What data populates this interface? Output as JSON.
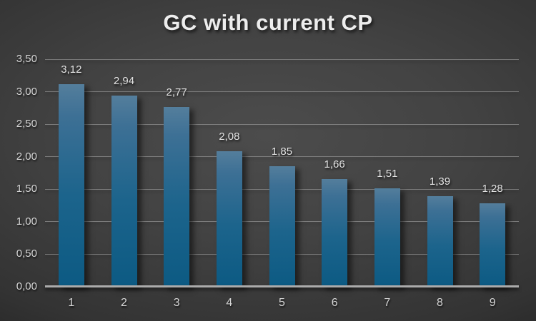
{
  "title": "GC with current CP",
  "colors": {
    "background_center": "#4c4c4c",
    "background_edge": "#141414",
    "bar_top": "#547e9c",
    "bar_bottom": "#0c5a83",
    "gridline": "#8f8f8f",
    "axis_line": "#ababab",
    "title_text": "#ededed",
    "label_text": "#e4e4e4",
    "tick_text": "#d6d6d6"
  },
  "chart_data": {
    "type": "bar",
    "title": "GC with current CP",
    "categories": [
      "1",
      "2",
      "3",
      "4",
      "5",
      "6",
      "7",
      "8",
      "9"
    ],
    "values": [
      3.12,
      2.94,
      2.77,
      2.08,
      1.85,
      1.66,
      1.51,
      1.39,
      1.28
    ],
    "value_labels": [
      "3,12",
      "2,94",
      "2,77",
      "2,08",
      "1,85",
      "1,66",
      "1,51",
      "1,39",
      "1,28"
    ],
    "xlabel": "",
    "ylabel": "",
    "ylim": [
      0,
      3.5
    ],
    "ytick_step": 0.5,
    "ytick_values": [
      0,
      0.5,
      1.0,
      1.5,
      2.0,
      2.5,
      3.0,
      3.5
    ],
    "ytick_labels": [
      "0,00",
      "0,50",
      "1,00",
      "1,50",
      "2,00",
      "2,50",
      "3,00",
      "3,50"
    ],
    "decimal_separator": ",",
    "grid": true,
    "legend": false
  }
}
